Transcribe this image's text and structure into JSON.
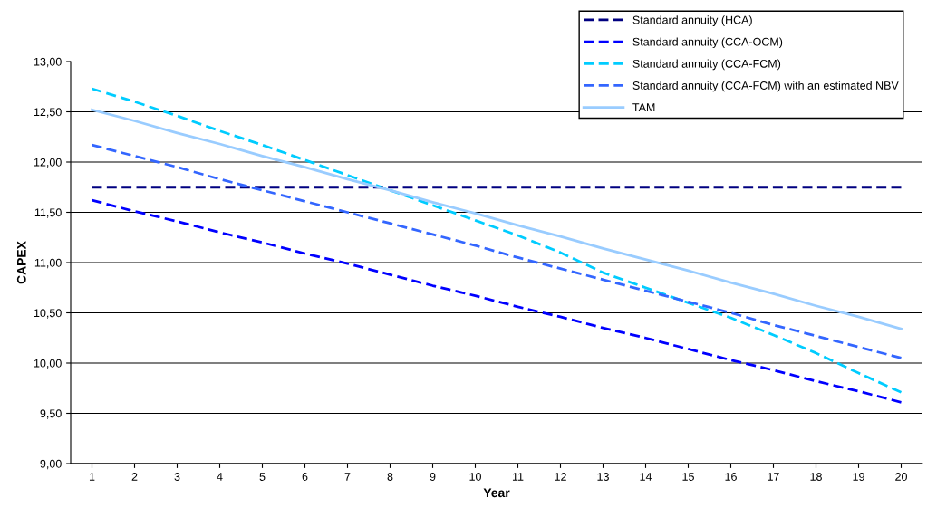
{
  "chart_data": {
    "type": "line",
    "xlabel": "Year",
    "ylabel": "CAPEX",
    "categories": [
      "1",
      "2",
      "3",
      "4",
      "5",
      "6",
      "7",
      "8",
      "9",
      "10",
      "11",
      "12",
      "13",
      "14",
      "15",
      "16",
      "17",
      "18",
      "19",
      "20"
    ],
    "series": [
      {
        "name": "Standard annuity (HCA)",
        "color": "#000080",
        "line_style": "dashed",
        "values": [
          11.75,
          11.75,
          11.75,
          11.75,
          11.75,
          11.75,
          11.75,
          11.75,
          11.75,
          11.75,
          11.75,
          11.75,
          11.75,
          11.75,
          11.75,
          11.75,
          11.75,
          11.75,
          11.75,
          11.75
        ]
      },
      {
        "name": "Standard annuity (CCA-OCM)",
        "color": "#0000ff",
        "line_style": "dashed",
        "values": [
          11.62,
          11.51,
          11.41,
          11.3,
          11.2,
          11.09,
          10.99,
          10.88,
          10.77,
          10.67,
          10.56,
          10.46,
          10.35,
          10.25,
          10.14,
          10.03,
          9.93,
          9.82,
          9.72,
          9.61
        ]
      },
      {
        "name": "Standard annuity (CCA-FCM)",
        "color": "#00ccff",
        "line_style": "dashed",
        "values": [
          12.73,
          12.6,
          12.46,
          12.31,
          12.17,
          12.02,
          11.87,
          11.72,
          11.57,
          11.42,
          11.27,
          11.1,
          10.9,
          10.75,
          10.6,
          10.45,
          10.28,
          10.1,
          9.9,
          9.71
        ]
      },
      {
        "name": "Standard annuity (CCA-FCM) with an estimated NBV",
        "color": "#3366ff",
        "line_style": "dashed",
        "values": [
          12.17,
          12.06,
          11.95,
          11.83,
          11.72,
          11.61,
          11.5,
          11.39,
          11.28,
          11.17,
          11.05,
          10.94,
          10.83,
          10.72,
          10.61,
          10.5,
          10.38,
          10.27,
          10.16,
          10.05
        ]
      },
      {
        "name": "TAM",
        "color": "#99ccff",
        "line_style": "solid",
        "values": [
          12.52,
          12.41,
          12.29,
          12.18,
          12.06,
          11.95,
          11.83,
          11.72,
          11.6,
          11.49,
          11.37,
          11.26,
          11.14,
          11.03,
          10.92,
          10.8,
          10.69,
          10.57,
          10.46,
          10.34
        ]
      }
    ],
    "ylim": [
      9,
      13
    ],
    "yticks": [
      {
        "value": 9,
        "label": "9,00"
      },
      {
        "value": 9.5,
        "label": "9,50"
      },
      {
        "value": 10,
        "label": "10,00"
      },
      {
        "value": 10.5,
        "label": "10,50"
      },
      {
        "value": 11,
        "label": "11,00"
      },
      {
        "value": 11.5,
        "label": "11,50"
      },
      {
        "value": 12,
        "label": "12,00"
      },
      {
        "value": 12.5,
        "label": "12,50"
      },
      {
        "value": 13,
        "label": "13,00"
      }
    ],
    "grid": "y",
    "legend": "top right",
    "marker": "none"
  }
}
